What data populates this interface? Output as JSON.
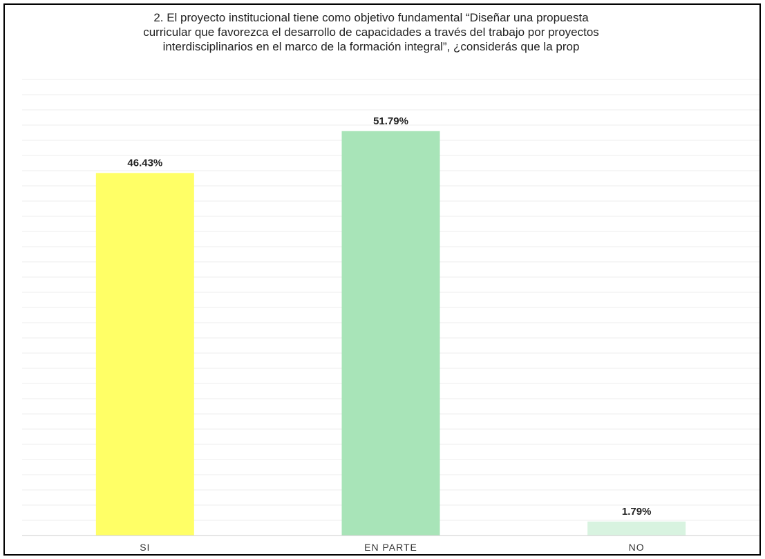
{
  "chart_data": {
    "type": "bar",
    "title_lines": [
      "2. El proyecto institucional tiene como objetivo fundamental “Diseñar una propuesta",
      "curricular que favorezca el desarrollo de capacidades a través del trabajo por proyectos",
      "interdisciplinarios  en el marco de la formación integral”, ¿considerás que la prop"
    ],
    "categories": [
      "SI",
      "EN PARTE",
      "NO"
    ],
    "values": [
      46.43,
      51.79,
      1.79
    ],
    "value_labels": [
      "46.43%",
      "51.79%",
      "1.79%"
    ],
    "colors": [
      "#ffff66",
      "#a8e4b8",
      "#d8f3e0"
    ],
    "ylim": [
      0,
      60
    ],
    "grid": true,
    "legend": "none"
  }
}
